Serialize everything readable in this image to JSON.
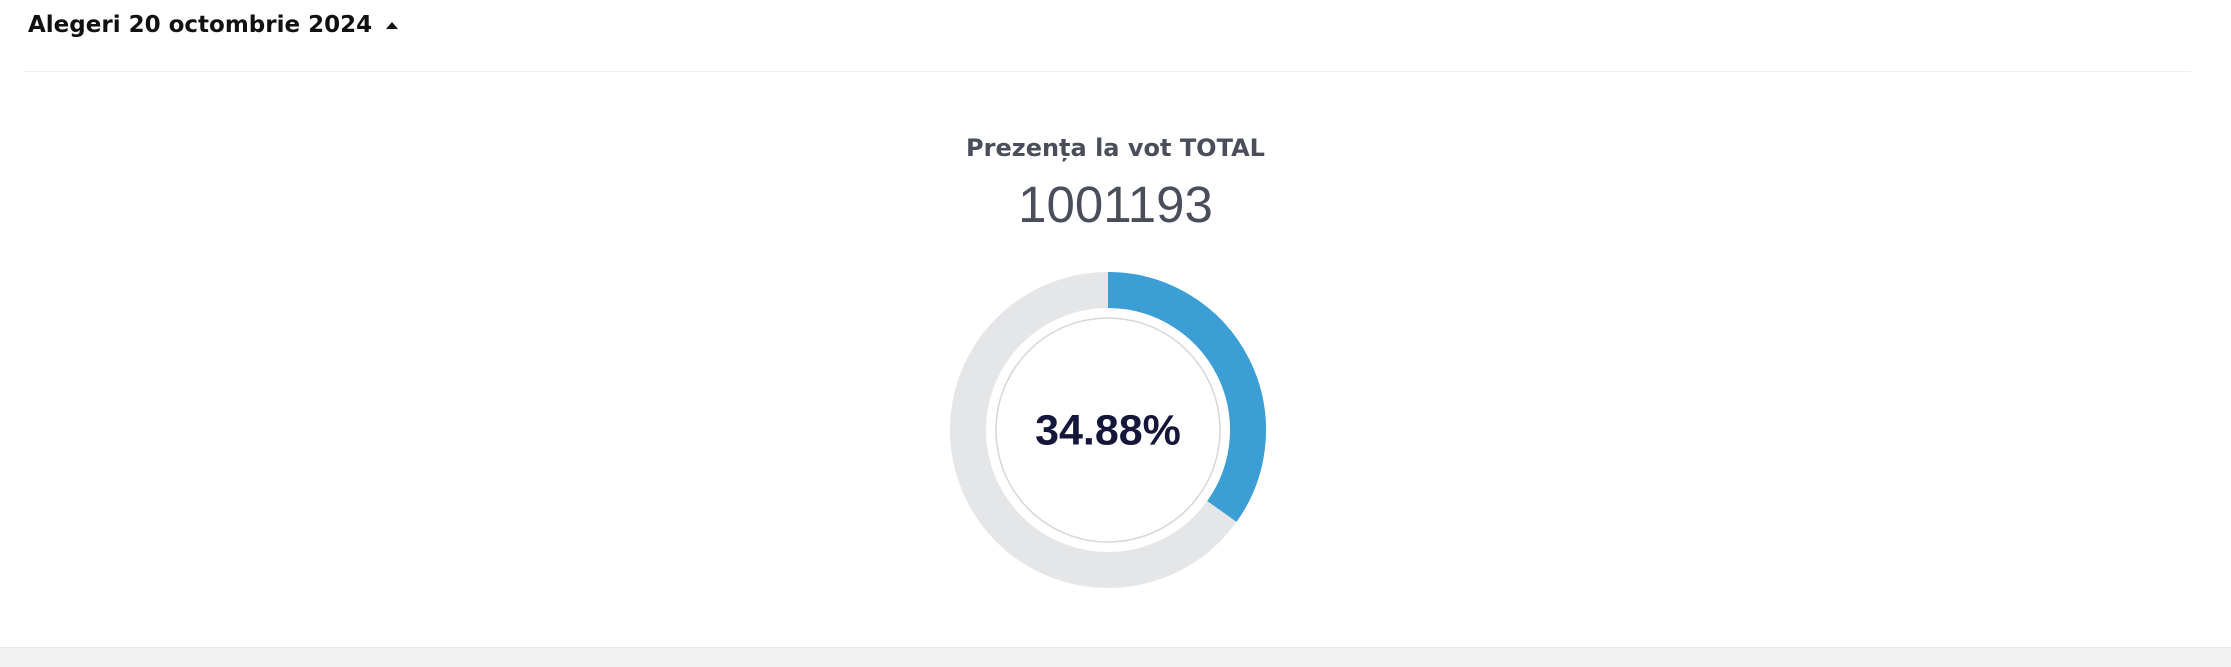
{
  "header": {
    "title": "Alegeri 20 octombrie 2024"
  },
  "card": {
    "title": "Prezența la vot TOTAL",
    "total": 1001193,
    "turnout": {
      "value": 34.88,
      "label": "34.88%"
    }
  }
}
